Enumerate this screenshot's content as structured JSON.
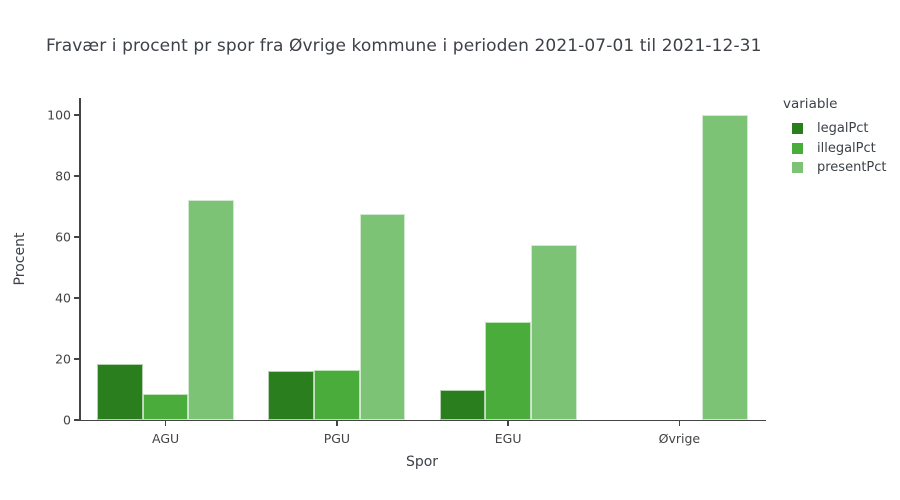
{
  "chart_data": {
    "type": "bar",
    "title": "Fravær i procent pr spor fra Øvrige kommune i perioden 2021-07-01 til 2021-12-31",
    "categories": [
      "AGU",
      "PGU",
      "EGU",
      "Øvrige"
    ],
    "series": [
      {
        "name": "legalPct",
        "color": "#2b7e1d",
        "values": [
          18.5,
          16.0,
          10.0,
          0
        ]
      },
      {
        "name": "illegalPct",
        "color": "#4aad3b",
        "values": [
          8.6,
          16.3,
          32.0,
          0
        ]
      },
      {
        "name": "presentPct",
        "color": "#7dc375",
        "values": [
          72.3,
          67.4,
          57.4,
          100
        ]
      }
    ],
    "xlabel": "Spor",
    "ylabel": "Procent",
    "ylim": [
      0,
      105.6
    ],
    "yticks": [
      0,
      20,
      40,
      60,
      80,
      100
    ],
    "grid": false,
    "legend_title": "variable",
    "legend_position": "right-top",
    "axis_color": "#444444",
    "background_color": "#ffffff"
  }
}
